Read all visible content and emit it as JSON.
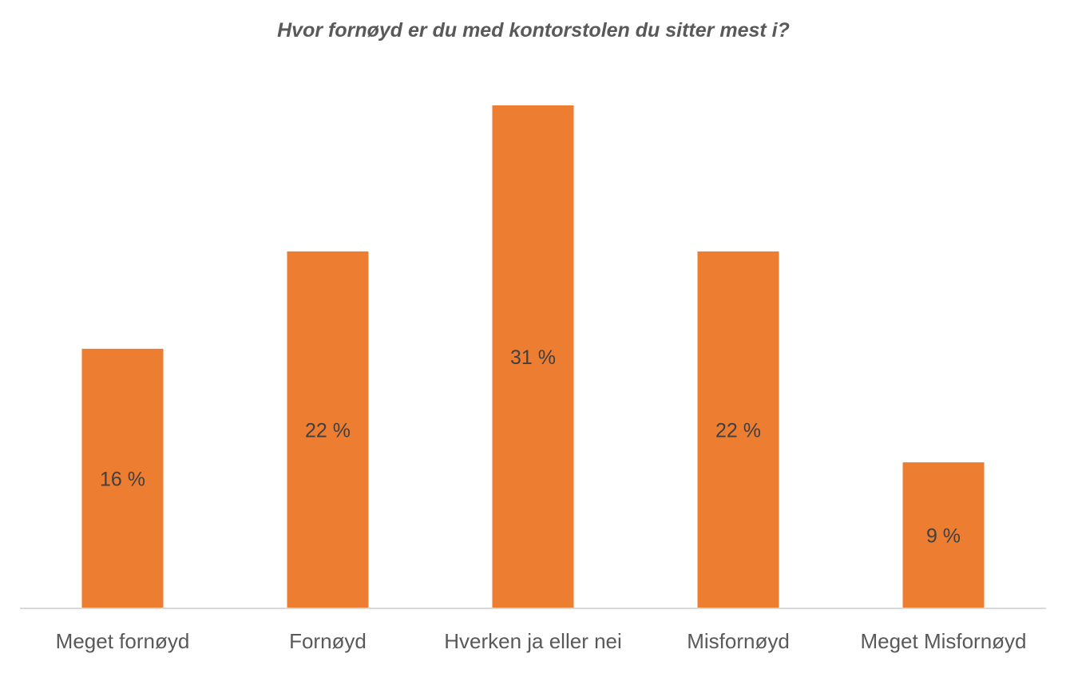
{
  "chart_data": {
    "type": "bar",
    "title": "Hvor fornøyd er du med kontorstolen du sitter mest i?",
    "categories": [
      "Meget fornøyd",
      "Fornøyd",
      "Hverken ja eller nei",
      "Misfornøyd",
      "Meget Misfornøyd"
    ],
    "values": [
      16,
      22,
      31,
      22,
      9
    ],
    "data_labels": [
      "16 %",
      "22 %",
      "31 %",
      "22 %",
      "9 %"
    ],
    "xlabel": "",
    "ylabel": "",
    "ylim": [
      0,
      31
    ],
    "unit": "%",
    "grid": false,
    "legend": "none",
    "colors": {
      "bar": "#ED7D31",
      "label": "#404040",
      "axis_text": "#595959",
      "axis_line": "#D9D9D9"
    }
  }
}
